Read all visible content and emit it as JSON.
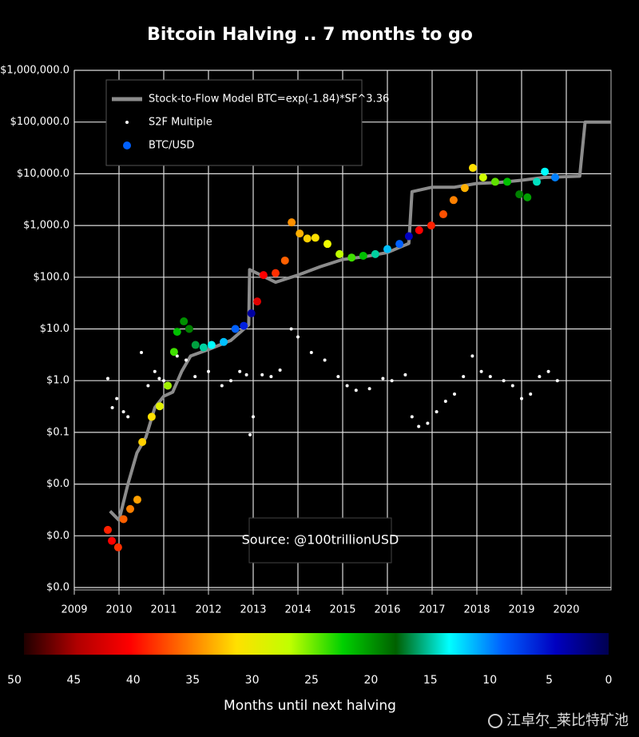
{
  "chart_data": {
    "type": "scatter",
    "title": "Bitcoin Halving .. 7 months to go",
    "log_y": true,
    "grid": true,
    "xlim": [
      2009,
      2021
    ],
    "xticks": [
      2009,
      2010,
      2011,
      2012,
      2013,
      2014,
      2015,
      2016,
      2017,
      2018,
      2019,
      2020
    ],
    "ylim": [
      0.0001,
      1000000
    ],
    "yticks": [
      {
        "value": 1000000,
        "label": "$1,000,000.0"
      },
      {
        "value": 100000,
        "label": "$100,000.0"
      },
      {
        "value": 10000,
        "label": "$10,000.0"
      },
      {
        "value": 1000,
        "label": "$1,000.0"
      },
      {
        "value": 100,
        "label": "$100.0"
      },
      {
        "value": 10,
        "label": "$10.0"
      },
      {
        "value": 1,
        "label": "$1.0"
      },
      {
        "value": 0.1,
        "label": "$0.1"
      },
      {
        "value": 0.01,
        "label": "$0.0"
      },
      {
        "value": 0.001,
        "label": "$0.0"
      },
      {
        "value": 0.0001,
        "label": "$0.0"
      }
    ],
    "legend": "upper left",
    "series": [
      {
        "name": "Stock-to-Flow Model BTC=exp(-1.84)*SF^3.36",
        "type": "line",
        "color": "#8c8c8c",
        "x": [
          2009.8,
          2010.0,
          2010.2,
          2010.4,
          2010.6,
          2010.8,
          2011.0,
          2011.2,
          2011.4,
          2011.6,
          2012.0,
          2012.5,
          2012.9,
          2012.92,
          2013.5,
          2014.0,
          2014.5,
          2015.0,
          2015.5,
          2016.0,
          2016.48,
          2016.55,
          2017.0,
          2017.5,
          2018.0,
          2018.5,
          2019.0,
          2019.5,
          2020.3,
          2020.42,
          2021.0
        ],
        "values": [
          0.003,
          0.002,
          0.01,
          0.04,
          0.08,
          0.3,
          0.5,
          0.6,
          1.5,
          3,
          4,
          6,
          12,
          140,
          80,
          110,
          160,
          220,
          250,
          300,
          450,
          4500,
          5500,
          5500,
          6500,
          6800,
          7500,
          8500,
          9000,
          100000,
          100000
        ]
      },
      {
        "name": "S2F Multiple",
        "type": "scatter",
        "color": "#ffffff",
        "size": 2,
        "x": [
          2009.75,
          2009.85,
          2009.95,
          2010.1,
          2010.2,
          2010.5,
          2010.65,
          2010.8,
          2010.9,
          2011.0,
          2011.3,
          2011.5,
          2011.7,
          2012.0,
          2012.3,
          2012.5,
          2012.7,
          2012.85,
          2012.93,
          2013.0,
          2013.2,
          2013.4,
          2013.6,
          2013.85,
          2014.0,
          2014.3,
          2014.6,
          2014.9,
          2015.1,
          2015.3,
          2015.6,
          2015.9,
          2016.1,
          2016.4,
          2016.55,
          2016.7,
          2016.9,
          2017.1,
          2017.3,
          2017.5,
          2017.7,
          2017.9,
          2018.1,
          2018.3,
          2018.6,
          2018.8,
          2019.0,
          2019.2,
          2019.4,
          2019.6,
          2019.8
        ],
        "values": [
          1.1,
          0.3,
          0.45,
          0.25,
          0.2,
          3.5,
          0.8,
          1.5,
          1.1,
          1.0,
          3,
          2.5,
          1.2,
          1.5,
          0.8,
          1.0,
          1.5,
          1.3,
          0.09,
          0.2,
          1.3,
          1.2,
          1.6,
          10,
          7,
          3.5,
          2.5,
          1.2,
          0.8,
          0.65,
          0.7,
          1.1,
          1.0,
          1.3,
          0.2,
          0.13,
          0.15,
          0.25,
          0.4,
          0.55,
          1.2,
          3,
          1.5,
          1.2,
          1.0,
          0.8,
          0.45,
          0.55,
          1.2,
          1.5,
          1.0
        ]
      },
      {
        "name": "BTC/USD",
        "type": "scatter",
        "color": "#0060ff",
        "size": 5,
        "x": [
          2009.75,
          2009.84,
          2009.98,
          2010.1,
          2010.25,
          2010.41,
          2010.52,
          2010.73,
          2010.91,
          2011.09,
          2011.23,
          2011.3,
          2011.45,
          2011.57,
          2011.71,
          2011.89,
          2012.07,
          2012.34,
          2012.6,
          2012.79,
          2012.96,
          2013.09,
          2013.23,
          2013.5,
          2013.71,
          2013.86,
          2014.04,
          2014.21,
          2014.39,
          2014.66,
          2014.93,
          2015.2,
          2015.46,
          2015.73,
          2016.0,
          2016.27,
          2016.48,
          2016.71,
          2016.98,
          2017.25,
          2017.48,
          2017.73,
          2017.91,
          2018.14,
          2018.41,
          2018.68,
          2018.95,
          2019.13,
          2019.34,
          2019.52,
          2019.75
        ],
        "values": [
          0.0013,
          0.0008,
          0.0006,
          0.0021,
          0.0033,
          0.005,
          0.065,
          0.2,
          0.32,
          0.8,
          3.6,
          8.8,
          14,
          10,
          4.9,
          4.4,
          4.9,
          5.6,
          10,
          11.5,
          20,
          34,
          110,
          120,
          210,
          1150,
          700,
          560,
          580,
          440,
          280,
          240,
          260,
          280,
          350,
          440,
          620,
          810,
          1000,
          1650,
          3100,
          5300,
          13000,
          8500,
          7000,
          7000,
          4000,
          3500,
          7000,
          11000,
          8500
        ],
        "colors": [
          "#ff2000",
          "#ff0000",
          "#ff3000",
          "#ff6000",
          "#ff8000",
          "#ffa000",
          "#ffd000",
          "#ffe000",
          "#e0f000",
          "#a0f000",
          "#40e000",
          "#00c000",
          "#009000",
          "#008000",
          "#00a040",
          "#00d0a0",
          "#00ffff",
          "#00c0ff",
          "#0060ff",
          "#0020e0",
          "#0000a0",
          "#e00000",
          "#ff0000",
          "#ff3000",
          "#ff6000",
          "#ff9000",
          "#ffb000",
          "#ffd000",
          "#ffe000",
          "#f0ff00",
          "#c0ff00",
          "#40e000",
          "#00c000",
          "#00d0a0",
          "#00c0ff",
          "#0060ff",
          "#0000c0",
          "#ff0000",
          "#ff2000",
          "#ff5000",
          "#ff8000",
          "#ffb000",
          "#ffe000",
          "#d0ff00",
          "#60e000",
          "#00c000",
          "#008000",
          "#00a000",
          "#00e0c0",
          "#00ffff",
          "#0080ff"
        ]
      }
    ],
    "annotation": "Source: @100trillionUSD",
    "colorbar": {
      "label": "Months until next halving",
      "lim": [
        50,
        0
      ],
      "ticks": [
        50,
        45,
        40,
        35,
        30,
        25,
        20,
        15,
        10,
        5,
        0
      ],
      "colors": [
        "#200000",
        "#b00000",
        "#ff0000",
        "#ff7000",
        "#ffe000",
        "#c0ff00",
        "#00d000",
        "#006000",
        "#00ffff",
        "#0060ff",
        "#0000c0",
        "#000050"
      ]
    },
    "watermark": "江卓尔_莱比特矿池"
  }
}
